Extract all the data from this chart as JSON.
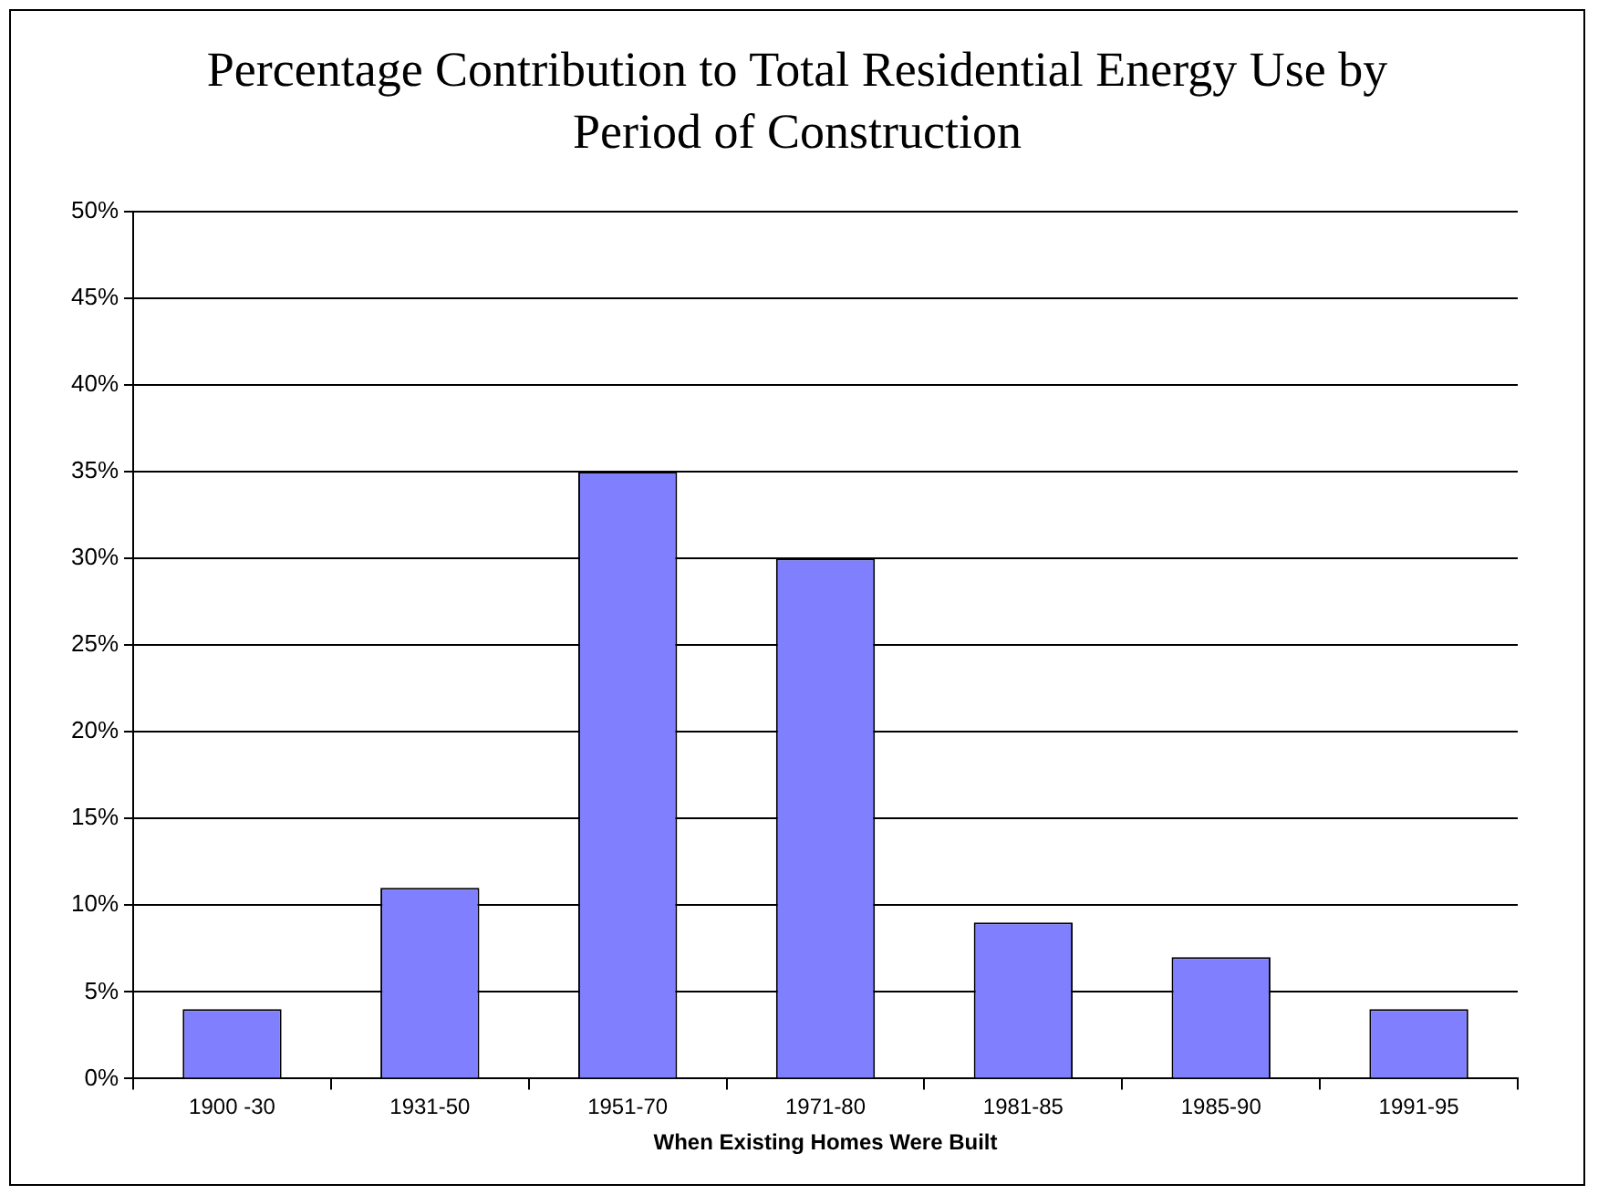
{
  "chart_data": {
    "type": "bar",
    "title": "Percentage Contribution to Total Residential Energy Use by Period of Construction",
    "xlabel": "When Existing Homes Were Built",
    "categories": [
      "1900 -30",
      "1931-50",
      "1951-70",
      "1971-80",
      "1981-85",
      "1985-90",
      "1991-95"
    ],
    "values": [
      4,
      11,
      35,
      30,
      9,
      7,
      4
    ],
    "color": "#8080ff",
    "ylim": [
      0,
      50
    ],
    "yticks": [
      {
        "value": 0,
        "label": "0%"
      },
      {
        "value": 5,
        "label": "5%"
      },
      {
        "value": 10,
        "label": "10%"
      },
      {
        "value": 15,
        "label": "15%"
      },
      {
        "value": 20,
        "label": "20%"
      },
      {
        "value": 25,
        "label": "25%"
      },
      {
        "value": 30,
        "label": "30%"
      },
      {
        "value": 35,
        "label": "35%"
      },
      {
        "value": 40,
        "label": "40%"
      },
      {
        "value": 45,
        "label": "45%"
      },
      {
        "value": 50,
        "label": "50%"
      }
    ],
    "grid": "y",
    "legend": false
  }
}
